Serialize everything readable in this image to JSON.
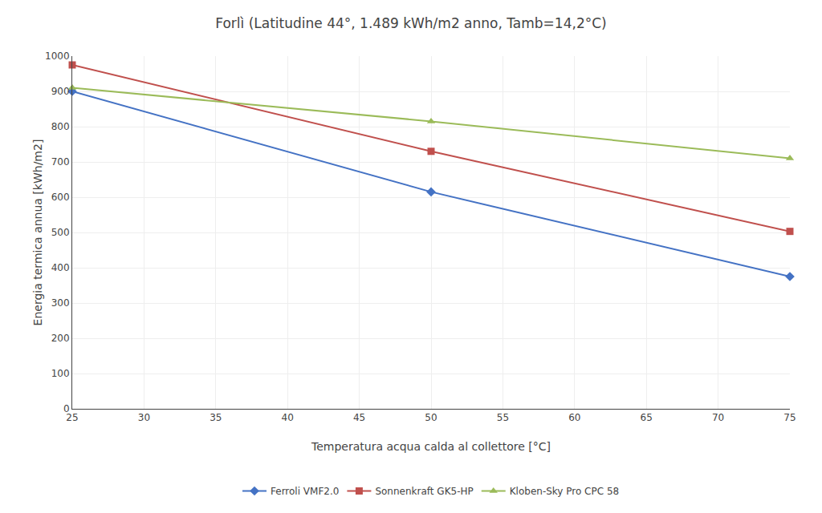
{
  "chart_data": {
    "type": "line",
    "title": "Forlì (Latitudine 44°, 1.489 kWh/m2 anno, Tamb=14,2°C)",
    "xlabel": "Temperatura acqua calda al collettore [°C]",
    "ylabel": "Energia termica annua [kWh/m2]",
    "x": [
      25,
      50,
      75
    ],
    "series": [
      {
        "name": "Ferroli VMF2.0",
        "color": "#4472C4",
        "marker": "diamond",
        "values": [
          900,
          615,
          375
        ]
      },
      {
        "name": "Sonnenkraft GK5-HP",
        "color": "#C0504D",
        "marker": "square",
        "values": [
          975,
          730,
          503
        ]
      },
      {
        "name": "Kloben-Sky Pro CPC 58",
        "color": "#9BBB59",
        "marker": "triangle-up",
        "values": [
          910,
          815,
          710
        ]
      }
    ],
    "xlim": [
      25,
      75
    ],
    "ylim": [
      0,
      1000
    ],
    "xticks": [
      25,
      30,
      35,
      40,
      45,
      50,
      55,
      60,
      65,
      70,
      75
    ],
    "yticks": [
      0,
      100,
      200,
      300,
      400,
      500,
      600,
      700,
      800,
      900,
      1000
    ],
    "grid": true,
    "legend": "bottom"
  }
}
